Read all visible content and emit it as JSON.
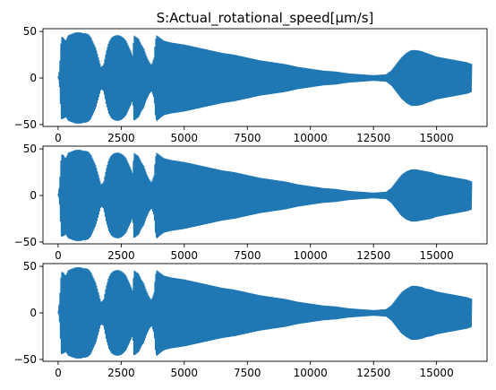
{
  "chart_data": {
    "type": "line",
    "title": "S:Actual_rotational_speed[µm/s]",
    "xlabel": "",
    "ylabel": "",
    "series_color": "#1f77b4",
    "grid": false,
    "subplots": [
      {
        "xlim": [
          -600,
          17000
        ],
        "ylim": [
          -52,
          53
        ],
        "xticks": [
          0,
          2500,
          5000,
          7500,
          10000,
          12500,
          15000
        ],
        "xtick_labels": [
          "0",
          "2500",
          "5000",
          "7500",
          "10000",
          "12500",
          "15000"
        ],
        "yticks": [
          -50,
          0,
          50
        ],
        "ytick_labels": [
          "−50",
          "0",
          "50"
        ],
        "envelope": {
          "x": [
            0,
            50,
            120,
            200,
            300,
            400,
            500,
            600,
            700,
            800,
            900,
            1000,
            1100,
            1200,
            1300,
            1400,
            1500,
            1600,
            1700,
            1800,
            1900,
            2000,
            2100,
            2200,
            2300,
            2400,
            2500,
            2600,
            2700,
            2800,
            2900,
            2950,
            3000,
            3100,
            3200,
            3300,
            3400,
            3500,
            3600,
            3700,
            3800,
            3850,
            3900,
            4000,
            4200,
            4500,
            5000,
            5500,
            6000,
            6500,
            7000,
            7500,
            8000,
            8500,
            9000,
            9500,
            10000,
            10500,
            11000,
            11500,
            12000,
            12500,
            13000,
            13200,
            13400,
            13600,
            13800,
            14000,
            14200,
            14400,
            14600,
            14800,
            15000,
            15200,
            15400,
            15600,
            15800,
            16000,
            16200,
            16400
          ],
          "upper": [
            2,
            8,
            44,
            44,
            40,
            46,
            47,
            48,
            49,
            49,
            49,
            48,
            48,
            47,
            44,
            38,
            32,
            22,
            12,
            14,
            28,
            38,
            43,
            45,
            46,
            46,
            45,
            43,
            40,
            34,
            28,
            24,
            46,
            44,
            42,
            36,
            32,
            24,
            18,
            14,
            22,
            40,
            46,
            44,
            40,
            38,
            36,
            33,
            30,
            27,
            25,
            22,
            19,
            17,
            15,
            12,
            10,
            8,
            7,
            5,
            4,
            3,
            4,
            8,
            15,
            22,
            27,
            30,
            30,
            29,
            27,
            25,
            23,
            22,
            21,
            20,
            19,
            18,
            17,
            15
          ],
          "lower": [
            2,
            -8,
            -44,
            -44,
            -42,
            -46,
            -47,
            -48,
            -49,
            -49,
            -49,
            -48,
            -48,
            -47,
            -44,
            -38,
            -32,
            -22,
            -12,
            -14,
            -28,
            -38,
            -43,
            -45,
            -46,
            -46,
            -45,
            -43,
            -40,
            -34,
            -28,
            -24,
            -46,
            -44,
            -42,
            -36,
            -32,
            -24,
            -18,
            -14,
            -22,
            -40,
            -47,
            -44,
            -40,
            -38,
            -36,
            -33,
            -30,
            -27,
            -25,
            -22,
            -19,
            -17,
            -15,
            -12,
            -10,
            -8,
            -7,
            -5,
            -4,
            -3,
            -4,
            -8,
            -15,
            -22,
            -27,
            -30,
            -30,
            -29,
            -27,
            -25,
            -23,
            -22,
            -21,
            -20,
            -19,
            -18,
            -17,
            -15
          ]
        }
      },
      {
        "xlim": [
          -600,
          17000
        ],
        "ylim": [
          -52,
          53
        ],
        "xticks": [
          0,
          2500,
          5000,
          7500,
          10000,
          12500,
          15000
        ],
        "xtick_labels": [
          "0",
          "2500",
          "5000",
          "7500",
          "10000",
          "12500",
          "15000"
        ],
        "yticks": [
          -50,
          0,
          50
        ],
        "ytick_labels": [
          "−50",
          "0",
          "50"
        ],
        "envelope": {
          "x": [
            0,
            50,
            120,
            200,
            300,
            400,
            500,
            600,
            700,
            800,
            900,
            1000,
            1100,
            1200,
            1300,
            1400,
            1500,
            1600,
            1700,
            1800,
            1900,
            2000,
            2100,
            2200,
            2300,
            2400,
            2500,
            2600,
            2700,
            2800,
            2900,
            2950,
            3000,
            3100,
            3200,
            3300,
            3400,
            3500,
            3600,
            3700,
            3800,
            3850,
            3900,
            4000,
            4200,
            4500,
            5000,
            5500,
            6000,
            6500,
            7000,
            7500,
            8000,
            8500,
            9000,
            9500,
            10000,
            10500,
            11000,
            11500,
            12000,
            12500,
            13000,
            13200,
            13400,
            13600,
            13800,
            14000,
            14200,
            14400,
            14600,
            14800,
            15000,
            15200,
            15400,
            15600,
            15800,
            16000,
            16200,
            16400
          ],
          "upper": [
            2,
            10,
            44,
            44,
            40,
            46,
            47,
            48,
            49,
            49,
            49,
            48,
            48,
            47,
            44,
            38,
            32,
            22,
            12,
            14,
            28,
            38,
            43,
            45,
            46,
            46,
            45,
            43,
            40,
            34,
            28,
            24,
            46,
            44,
            42,
            36,
            32,
            24,
            18,
            14,
            22,
            40,
            46,
            44,
            40,
            38,
            36,
            33,
            30,
            27,
            25,
            22,
            19,
            17,
            15,
            12,
            10,
            8,
            7,
            5,
            4,
            3,
            4,
            8,
            15,
            22,
            26,
            28,
            28,
            27,
            26,
            25,
            23,
            22,
            21,
            20,
            19,
            18,
            17,
            15
          ],
          "lower": [
            2,
            -8,
            -44,
            -44,
            -42,
            -46,
            -47,
            -48,
            -49,
            -49,
            -49,
            -48,
            -48,
            -47,
            -44,
            -38,
            -32,
            -22,
            -12,
            -14,
            -28,
            -38,
            -43,
            -45,
            -46,
            -46,
            -45,
            -43,
            -40,
            -34,
            -28,
            -24,
            -46,
            -44,
            -42,
            -36,
            -32,
            -24,
            -18,
            -14,
            -22,
            -40,
            -47,
            -44,
            -40,
            -38,
            -36,
            -33,
            -30,
            -27,
            -25,
            -22,
            -19,
            -17,
            -15,
            -12,
            -10,
            -8,
            -7,
            -5,
            -4,
            -3,
            -4,
            -8,
            -15,
            -22,
            -26,
            -28,
            -28,
            -27,
            -26,
            -25,
            -23,
            -22,
            -21,
            -20,
            -19,
            -18,
            -17,
            -15
          ]
        }
      },
      {
        "xlim": [
          -600,
          17000
        ],
        "ylim": [
          -52,
          53
        ],
        "xticks": [
          0,
          2500,
          5000,
          7500,
          10000,
          12500,
          15000
        ],
        "xtick_labels": [
          "0",
          "2500",
          "5000",
          "7500",
          "10000",
          "12500",
          "15000"
        ],
        "yticks": [
          -50,
          0,
          50
        ],
        "ytick_labels": [
          "−50",
          "0",
          "50"
        ],
        "envelope": {
          "x": [
            0,
            50,
            120,
            200,
            300,
            400,
            500,
            600,
            700,
            800,
            900,
            1000,
            1100,
            1200,
            1300,
            1400,
            1500,
            1600,
            1700,
            1800,
            1900,
            2000,
            2100,
            2200,
            2300,
            2400,
            2500,
            2600,
            2700,
            2800,
            2900,
            2950,
            3000,
            3100,
            3200,
            3300,
            3400,
            3500,
            3600,
            3700,
            3800,
            3850,
            3900,
            4000,
            4200,
            4500,
            5000,
            5500,
            6000,
            6500,
            7000,
            7500,
            8000,
            8500,
            9000,
            9500,
            10000,
            10500,
            11000,
            11500,
            12000,
            12500,
            13000,
            13200,
            13400,
            13600,
            13800,
            14000,
            14200,
            14400,
            14600,
            14800,
            15000,
            15200,
            15400,
            15600,
            15800,
            16000,
            16200,
            16400
          ],
          "upper": [
            2,
            12,
            44,
            44,
            40,
            46,
            47,
            48,
            49,
            49,
            49,
            48,
            48,
            47,
            44,
            38,
            32,
            22,
            12,
            14,
            28,
            38,
            43,
            45,
            46,
            46,
            45,
            43,
            40,
            34,
            28,
            24,
            46,
            44,
            42,
            36,
            32,
            24,
            18,
            14,
            22,
            40,
            46,
            44,
            40,
            38,
            36,
            33,
            30,
            27,
            25,
            22,
            19,
            17,
            15,
            12,
            10,
            8,
            7,
            5,
            4,
            3,
            4,
            8,
            15,
            22,
            26,
            29,
            29,
            28,
            26,
            25,
            23,
            22,
            21,
            20,
            19,
            18,
            17,
            15
          ],
          "lower": [
            2,
            -8,
            -44,
            -44,
            -42,
            -46,
            -47,
            -48,
            -49,
            -49,
            -49,
            -48,
            -48,
            -47,
            -44,
            -38,
            -32,
            -22,
            -12,
            -14,
            -28,
            -38,
            -43,
            -45,
            -46,
            -46,
            -45,
            -43,
            -40,
            -34,
            -28,
            -24,
            -46,
            -44,
            -42,
            -36,
            -32,
            -24,
            -18,
            -14,
            -22,
            -40,
            -47,
            -44,
            -40,
            -38,
            -36,
            -33,
            -30,
            -27,
            -25,
            -22,
            -19,
            -17,
            -15,
            -12,
            -10,
            -8,
            -7,
            -5,
            -4,
            -3,
            -4,
            -8,
            -15,
            -22,
            -26,
            -29,
            -29,
            -28,
            -26,
            -25,
            -23,
            -22,
            -21,
            -20,
            -19,
            -18,
            -17,
            -15
          ]
        }
      }
    ]
  }
}
